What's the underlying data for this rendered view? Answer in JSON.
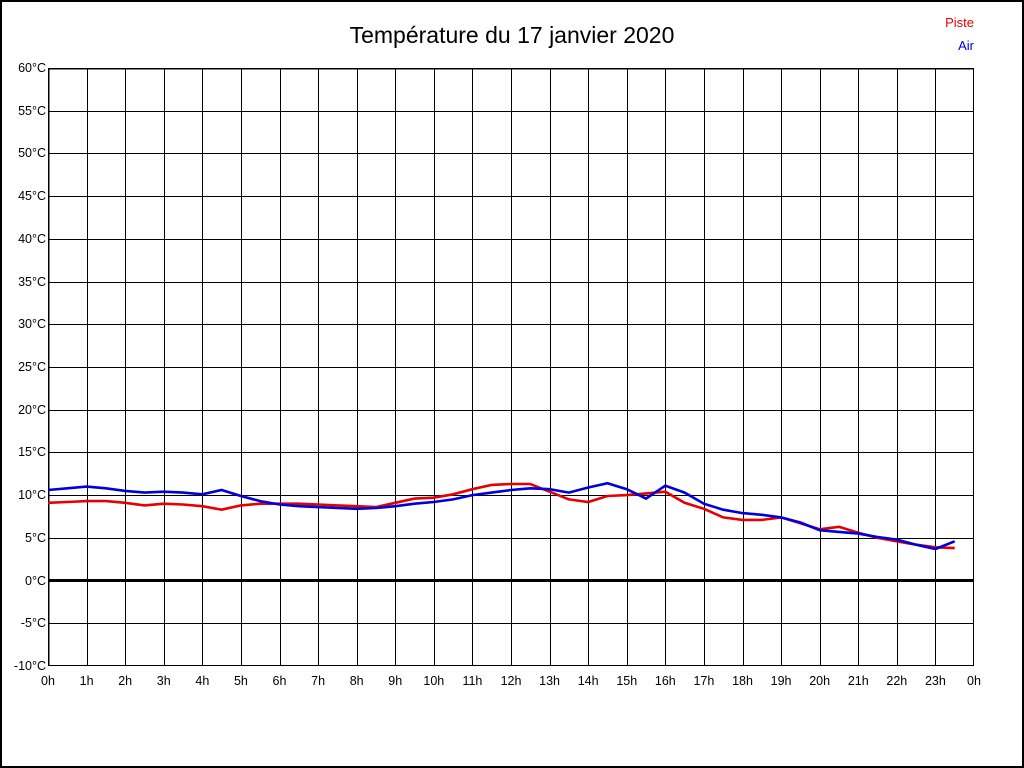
{
  "title": "Température du 17 janvier 2020",
  "legend": [
    {
      "label": "Piste",
      "color": "#e60000"
    },
    {
      "label": "Air",
      "color": "#0000dd"
    }
  ],
  "colors": {
    "piste": "#e60000",
    "air": "#0000dd",
    "grid": "#000000",
    "zero_line": "#000000",
    "background": "#ffffff"
  },
  "chart_data": {
    "type": "line",
    "title": "Température du 17 janvier 2020",
    "xlabel": "",
    "ylabel": "",
    "xlim": [
      0,
      24
    ],
    "ylim": [
      -10,
      60
    ],
    "grid": true,
    "zero_line_at": 0,
    "legend_position": "top-right",
    "x_tick_labels": [
      "0h",
      "1h",
      "2h",
      "3h",
      "4h",
      "5h",
      "6h",
      "7h",
      "8h",
      "9h",
      "10h",
      "11h",
      "12h",
      "13h",
      "14h",
      "15h",
      "16h",
      "17h",
      "18h",
      "19h",
      "20h",
      "21h",
      "22h",
      "23h",
      "0h"
    ],
    "y_tick_labels": [
      "60°C",
      "55°C",
      "50°C",
      "45°C",
      "40°C",
      "35°C",
      "30°C",
      "25°C",
      "20°C",
      "15°C",
      "10°C",
      "5°C",
      "0°C",
      "-5°C",
      "-10°C"
    ],
    "x": [
      0,
      0.5,
      1,
      1.5,
      2,
      2.5,
      3,
      3.5,
      4,
      4.5,
      5,
      5.5,
      6,
      6.5,
      7,
      7.5,
      8,
      8.5,
      9,
      9.5,
      10,
      10.5,
      11,
      11.5,
      12,
      12.5,
      13,
      13.5,
      14,
      14.5,
      15,
      15.5,
      16,
      16.5,
      17,
      17.5,
      18,
      18.5,
      19,
      19.5,
      20,
      20.5,
      21,
      21.5,
      22,
      22.5,
      23,
      23.5
    ],
    "series": [
      {
        "name": "Piste",
        "color": "#e60000",
        "values": [
          9.1,
          9.2,
          9.3,
          9.3,
          9.1,
          8.8,
          9.0,
          8.9,
          8.7,
          8.3,
          8.8,
          9.0,
          9.0,
          9.0,
          8.9,
          8.8,
          8.7,
          8.6,
          9.1,
          9.6,
          9.7,
          10.1,
          10.7,
          11.2,
          11.3,
          11.3,
          10.4,
          9.5,
          9.2,
          9.9,
          10.0,
          10.2,
          10.4,
          9.1,
          8.4,
          7.4,
          7.1,
          7.1,
          7.4,
          6.7,
          6.0,
          6.3,
          5.6,
          5.0,
          4.6,
          4.2,
          3.9,
          3.8
        ]
      },
      {
        "name": "Air",
        "color": "#0000dd",
        "values": [
          10.6,
          10.8,
          11.0,
          10.8,
          10.5,
          10.3,
          10.4,
          10.3,
          10.1,
          10.6,
          9.9,
          9.3,
          8.9,
          8.7,
          8.6,
          8.5,
          8.4,
          8.5,
          8.7,
          9.0,
          9.2,
          9.5,
          10.0,
          10.3,
          10.6,
          10.8,
          10.7,
          10.3,
          10.9,
          11.4,
          10.7,
          9.6,
          11.1,
          10.3,
          9.0,
          8.3,
          7.9,
          7.7,
          7.4,
          6.8,
          5.9,
          5.7,
          5.5,
          5.1,
          4.8,
          4.2,
          3.7,
          4.6
        ]
      }
    ]
  }
}
